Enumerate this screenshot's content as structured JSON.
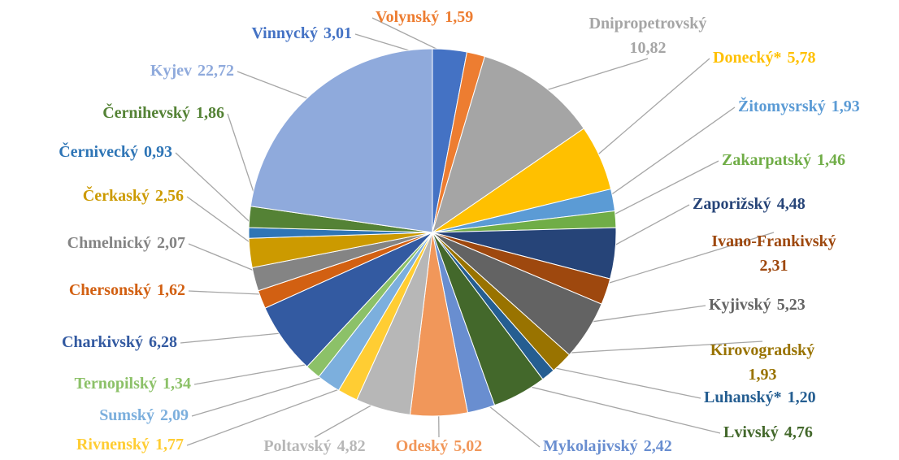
{
  "chart_data": {
    "type": "pie",
    "categories": [
      "Vinnycký",
      "Volynský",
      "Dnipropetrovský",
      "Donecký*",
      "Žitomysrský",
      "Zakarpatský",
      "Zaporižský",
      "Ivano-Frankivský",
      "Kyjivský",
      "Kirovogradský",
      "Luhanský*",
      "Lvivský",
      "Mykolajivský",
      "Odeský",
      "Poltavský",
      "Rivnenský",
      "Sumský",
      "Ternopilský",
      "Charkivský",
      "Chersonský",
      "Chmelnický",
      "Čerkaský",
      "Černivecký",
      "Černihevský",
      "Kyjev"
    ],
    "values": [
      3.01,
      1.59,
      10.82,
      5.78,
      1.93,
      1.46,
      4.48,
      2.31,
      5.23,
      1.93,
      1.2,
      4.76,
      2.42,
      5.02,
      4.82,
      1.77,
      2.09,
      1.34,
      6.28,
      1.62,
      2.07,
      2.56,
      0.93,
      1.86,
      22.72
    ],
    "value_labels": [
      "3,01",
      "1,59",
      "10,82",
      "5,78",
      "1,93",
      "1,46",
      "4,48",
      "2,31",
      "5,23",
      "1,93",
      "1,20",
      "4,76",
      "2,42",
      "5,02",
      "4,82",
      "1,77",
      "2,09",
      "1,34",
      "6,28",
      "1,62",
      "2,07",
      "2,56",
      "0,93",
      "1,86",
      "22,72"
    ],
    "colors": [
      "#4472c4",
      "#ed7d31",
      "#a5a5a5",
      "#ffc000",
      "#5b9bd5",
      "#70ad47",
      "#264478",
      "#9e480e",
      "#636363",
      "#997300",
      "#255e91",
      "#43682b",
      "#698ed0",
      "#f1975a",
      "#b7b7b7",
      "#ffcd33",
      "#7cafdd",
      "#8cc168",
      "#335aa1",
      "#d26012",
      "#848484",
      "#cc9a00",
      "#2e75b6",
      "#548235",
      "#8faadc"
    ]
  }
}
